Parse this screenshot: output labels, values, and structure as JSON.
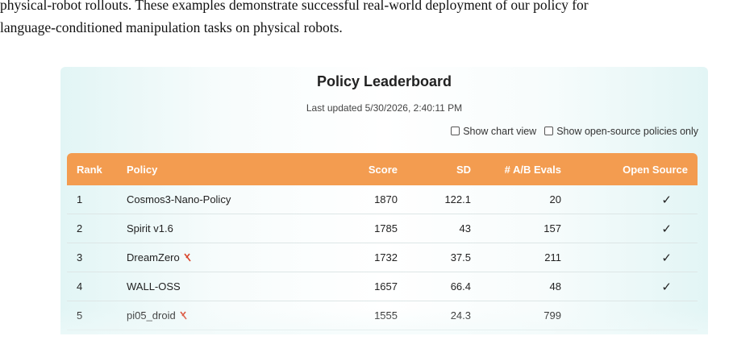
{
  "intro_text": [
    "physical-robot rollouts. These examples demonstrate successful real-world deployment of our policy for",
    "language-conditioned manipulation tasks on physical robots."
  ],
  "leaderboard": {
    "title": "Policy Leaderboard",
    "last_updated": "Last updated 5/30/2026, 2:40:11 PM",
    "options": [
      "Show chart view",
      "Show open-source policies only"
    ],
    "table": {
      "columns": [
        "Rank",
        "Policy",
        "Score",
        "SD",
        "# A/B Evals",
        "Open Source"
      ],
      "rows": [
        [
          1,
          "Cosmos3-Nano-Policy",
          1870,
          122.1,
          20,
          "✓"
        ],
        [
          2,
          "Spirit v1.6",
          1785,
          43,
          157,
          "✓"
        ],
        [
          3,
          "DreamZero",
          1732,
          37.5,
          211,
          "✓"
        ],
        [
          4,
          "WALL-OSS",
          1657,
          66.4,
          48,
          "✓"
        ],
        [
          5,
          "pi05_droid",
          1555,
          24.3,
          799,
          null
        ]
      ]
    }
  }
}
